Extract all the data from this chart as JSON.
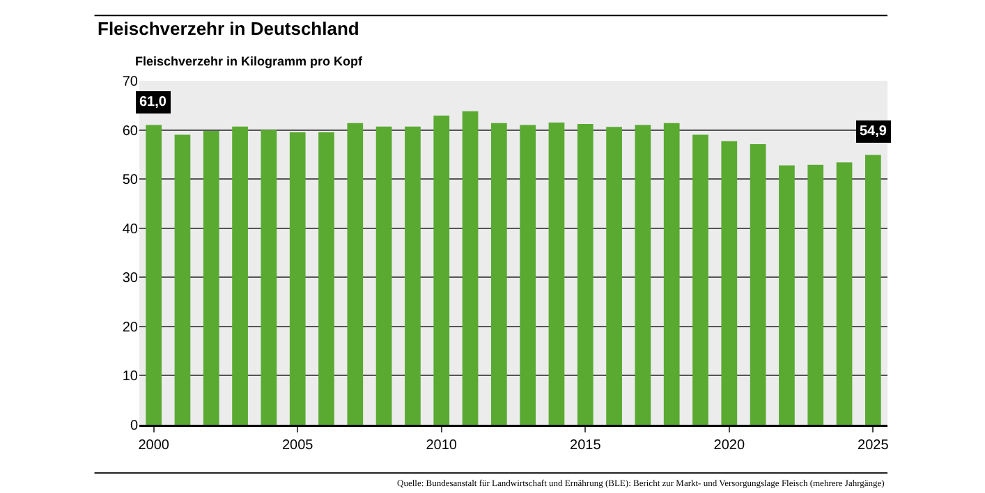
{
  "chart_data": {
    "type": "bar",
    "title": "Fleischverzehr in Deutschland",
    "ylabel": "Fleischverzehr in Kilogramm pro Kopf",
    "categories": [
      "2000",
      null,
      null,
      null,
      null,
      "2005",
      null,
      null,
      null,
      null,
      "2010",
      null,
      null,
      null,
      null,
      "2015",
      null,
      null,
      null,
      null,
      "2020",
      null,
      null,
      null,
      null,
      "2025"
    ],
    "values": [
      61.0,
      59.0,
      59.8,
      60.7,
      60.0,
      59.5,
      59.5,
      61.4,
      60.7,
      60.7,
      62.9,
      63.8,
      61.4,
      61.0,
      61.5,
      61.2,
      60.6,
      61.0,
      61.4,
      59.0,
      57.7,
      57.1,
      52.8,
      52.9,
      53.4,
      54.9
    ],
    "value_labels": [
      "61,0",
      null,
      null,
      null,
      null,
      null,
      null,
      null,
      null,
      null,
      null,
      null,
      null,
      null,
      null,
      null,
      null,
      null,
      null,
      null,
      null,
      null,
      null,
      null,
      null,
      "54,9"
    ],
    "color": "#5aaa32",
    "ylim": [
      0,
      70
    ],
    "yticks": [
      0,
      10,
      20,
      30,
      40,
      50,
      60,
      70
    ],
    "grid": "y",
    "legend": false,
    "annotations": [
      "Quelle: Bundesanstalt für Landwirtschaft und Ernährung (BLE): Bericht zur Markt- und Versorgungslage Fleisch (mehrere Jahrgänge)"
    ]
  }
}
